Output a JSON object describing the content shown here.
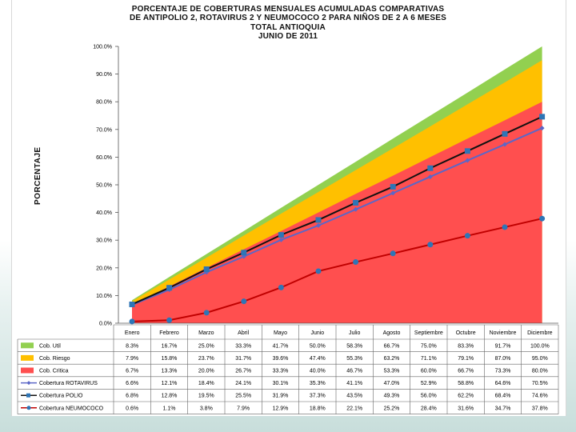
{
  "chart_data": {
    "type": "area",
    "title_lines": [
      "PORCENTAJE DE COBERTURAS MENSUALES ACUMULADAS COMPARATIVAS",
      "DE ANTIPOLIO 2, ROTAVIRUS 2 Y NEUMOCOCO 2 PARA NIÑOS DE 2 A 6 MESES",
      "TOTAL ANTIOQUIA",
      "JUNIO DE 2011"
    ],
    "ylabel": "PORCENTAJE",
    "ylim": [
      0,
      100
    ],
    "yticks": [
      "0.0%",
      "10.0%",
      "20.0%",
      "30.0%",
      "40.0%",
      "50.0%",
      "60.0%",
      "70.0%",
      "80.0%",
      "90.0%",
      "100.0%"
    ],
    "categories": [
      "Enero",
      "Febrero",
      "Marzo",
      "Abril",
      "Mayo",
      "Junio",
      "Julio",
      "Agosto",
      "Septiembre",
      "Octubre",
      "Noviembre",
      "Diciembre"
    ],
    "area_series": [
      {
        "name": "Cob. Util",
        "color": "#92d050",
        "labels": [
          "8.3%",
          "16.7%",
          "25.0%",
          "33.3%",
          "41.7%",
          "50.0%",
          "58.3%",
          "66.7%",
          "75.0%",
          "83.3%",
          "91.7%",
          "100.0%"
        ],
        "values": [
          8.3,
          16.7,
          25.0,
          33.3,
          41.7,
          50.0,
          58.3,
          66.7,
          75.0,
          83.3,
          91.7,
          100.0
        ]
      },
      {
        "name": "Cob. Riesgo",
        "color": "#ffc000",
        "labels": [
          "7.9%",
          "15.8%",
          "23.7%",
          "31.7%",
          "39.6%",
          "47.4%",
          "55.3%",
          "63.2%",
          "71.1%",
          "79.1%",
          "87.0%",
          "95.0%"
        ],
        "values": [
          7.9,
          15.8,
          23.7,
          31.7,
          39.6,
          47.4,
          55.3,
          63.2,
          71.1,
          79.1,
          87.0,
          95.0
        ]
      },
      {
        "name": "Cob. Critica",
        "color": "#ff4f4f",
        "labels": [
          "6.7%",
          "13.3%",
          "20.0%",
          "26.7%",
          "33.3%",
          "40.0%",
          "46.7%",
          "53.3%",
          "60.0%",
          "66.7%",
          "73.3%",
          "80.0%"
        ],
        "values": [
          6.7,
          13.3,
          20.0,
          26.7,
          33.3,
          40.0,
          46.7,
          53.3,
          60.0,
          66.7,
          73.3,
          80.0
        ]
      }
    ],
    "line_series": [
      {
        "name": "Cobertura ROTAVIRUS",
        "color": "#5b67c7",
        "marker": "diamond",
        "labels": [
          "6.6%",
          "12.1%",
          "18.4%",
          "24.1%",
          "30.1%",
          "35.3%",
          "41.1%",
          "47.0%",
          "52.9%",
          "58.8%",
          "64.6%",
          "70.5%"
        ],
        "values": [
          6.6,
          12.1,
          18.4,
          24.1,
          30.1,
          35.3,
          41.1,
          47.0,
          52.9,
          58.8,
          64.6,
          70.5
        ]
      },
      {
        "name": "Cobertura POLIO",
        "color": "#111111",
        "marker": "square",
        "marker_color": "#2e75b6",
        "labels": [
          "6.8%",
          "12.8%",
          "19.5%",
          "25.5%",
          "31.9%",
          "37.3%",
          "43.5%",
          "49.3%",
          "56.0%",
          "62.2%",
          "68.4%",
          "74.6%"
        ],
        "values": [
          6.8,
          12.8,
          19.5,
          25.5,
          31.9,
          37.3,
          43.5,
          49.3,
          56.0,
          62.2,
          68.4,
          74.6
        ]
      },
      {
        "name": "Cobertura NEUMOCOCO",
        "color": "#c00000",
        "marker": "circle",
        "marker_color": "#2e75b6",
        "labels": [
          "0.6%",
          "1.1%",
          "3.8%",
          "7.9%",
          "12.9%",
          "18.8%",
          "22.1%",
          "25.2%",
          "28.4%",
          "31.6%",
          "34.7%",
          "37.8%"
        ],
        "values": [
          0.6,
          1.1,
          3.8,
          7.9,
          12.9,
          18.8,
          22.1,
          25.2,
          28.4,
          31.6,
          34.7,
          37.8
        ]
      }
    ],
    "grid": false,
    "legend": "table-below"
  }
}
